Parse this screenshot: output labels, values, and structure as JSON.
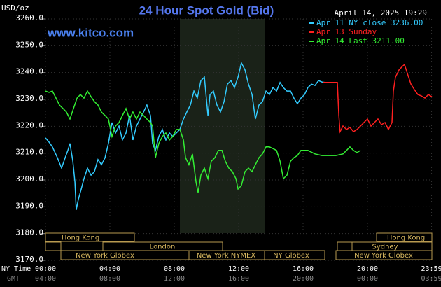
{
  "chart_data": {
    "type": "line",
    "title": "24 Hour Spot Gold (Bid)",
    "ylabel": "USD/oz",
    "timestamp": "April 14, 2025 19:29",
    "source": "www.kitco.com",
    "xlabel": "NY Time",
    "x2label": "GMT",
    "xlim": [
      0,
      24
    ],
    "ylim": [
      3170,
      3260
    ],
    "xticks": [
      {
        "value": 0,
        "label": "00:00"
      },
      {
        "value": 4,
        "label": "04:00"
      },
      {
        "value": 8,
        "label": "08:00"
      },
      {
        "value": 12,
        "label": "12:00"
      },
      {
        "value": 16,
        "label": "16:00"
      },
      {
        "value": 20,
        "label": "20:00"
      },
      {
        "value": 23.98,
        "label": "23:59"
      }
    ],
    "gmt_ticks": [
      "04:00",
      "08:00",
      "12:00",
      "16:00",
      "20:00",
      "00:00",
      "03:59"
    ],
    "yticks": [
      {
        "value": 3260,
        "label": "3260.0"
      },
      {
        "value": 3250,
        "label": "3250.0"
      },
      {
        "value": 3240,
        "label": "3240.0"
      },
      {
        "value": 3230,
        "label": "3230.0"
      },
      {
        "value": 3220,
        "label": "3220.0"
      },
      {
        "value": 3210,
        "label": "3210.0"
      },
      {
        "value": 3200,
        "label": "3200.0"
      },
      {
        "value": 3190,
        "label": "3190.0"
      },
      {
        "value": 3180,
        "label": "3180.0"
      },
      {
        "value": 3170,
        "label": "3170.0"
      }
    ],
    "grid": true,
    "sessions": [
      "Hong Kong",
      "London",
      "New York Globex",
      "New York NYMEX",
      "NY Globex",
      "Hong Kong",
      "Sydney",
      "New York Globex"
    ],
    "series": [
      {
        "name": "Apr 11 NY close 3236.00",
        "color": "#33ccff",
        "x": [
          0,
          0.22,
          0.43,
          0.74,
          1.0,
          1.22,
          1.39,
          1.52,
          1.7,
          1.83,
          1.91,
          2.04,
          2.22,
          2.39,
          2.61,
          2.83,
          3.04,
          3.26,
          3.48,
          3.7,
          3.91,
          4.13,
          4.35,
          4.57,
          4.78,
          5.0,
          5.22,
          5.43,
          5.65,
          5.87,
          6.09,
          6.3,
          6.52,
          6.65,
          6.83,
          7.04,
          7.26,
          7.48,
          7.7,
          7.91,
          8.13,
          8.35,
          8.57,
          8.78,
          9.0,
          9.22,
          9.43,
          9.65,
          9.87,
          10.09,
          10.22,
          10.43,
          10.65,
          10.87,
          11.09,
          11.3,
          11.52,
          11.74,
          11.96,
          12.17,
          12.39,
          12.61,
          12.83,
          13.04,
          13.26,
          13.48,
          13.7,
          13.91,
          14.13,
          14.35,
          14.57,
          14.78,
          15.0,
          15.22,
          15.43,
          15.65,
          15.87,
          16.09,
          16.3,
          16.52,
          16.74,
          16.96,
          17.17,
          17.35
        ],
        "values": [
          3215.7,
          3214.1,
          3212.3,
          3208.3,
          3204.4,
          3208.3,
          3211.0,
          3213.6,
          3207.0,
          3199.2,
          3188.8,
          3192.7,
          3196.6,
          3200.5,
          3204.4,
          3201.8,
          3203.1,
          3207.6,
          3205.7,
          3208.3,
          3213.6,
          3221.4,
          3217.5,
          3220.1,
          3214.9,
          3217.5,
          3224.0,
          3214.9,
          3220.1,
          3222.7,
          3225.3,
          3227.9,
          3224.0,
          3213.6,
          3211.0,
          3216.2,
          3218.8,
          3214.9,
          3217.5,
          3216.2,
          3217.5,
          3218.8,
          3222.7,
          3225.3,
          3227.9,
          3233.1,
          3230.5,
          3237.0,
          3238.3,
          3224.0,
          3231.8,
          3233.1,
          3227.9,
          3225.3,
          3229.2,
          3235.7,
          3237.0,
          3234.4,
          3238.3,
          3243.6,
          3241.0,
          3235.7,
          3231.8,
          3222.7,
          3227.9,
          3229.2,
          3233.1,
          3231.8,
          3234.4,
          3233.1,
          3236.3,
          3234.4,
          3233.1,
          3233.1,
          3230.5,
          3228.4,
          3230.5,
          3231.8,
          3234.4,
          3235.7,
          3235.2,
          3237.0,
          3236.5,
          3236.3
        ]
      },
      {
        "name": "Apr 13 Sunday",
        "color": "#ff2020",
        "x": [
          17.26,
          18.13,
          18.22,
          18.3,
          18.48,
          18.7,
          18.91,
          19.13,
          19.35,
          19.57,
          19.78,
          20.0,
          20.22,
          20.43,
          20.65,
          20.87,
          21.09,
          21.3,
          21.52,
          21.61,
          21.74,
          21.96,
          22.17,
          22.3,
          22.48,
          22.7,
          22.91,
          23.13,
          23.35,
          23.57,
          23.78,
          24.0
        ],
        "values": [
          3236.3,
          3236.3,
          3224.0,
          3218.0,
          3220.1,
          3218.8,
          3219.6,
          3218.0,
          3218.8,
          3220.1,
          3221.4,
          3222.7,
          3220.1,
          3221.4,
          3222.7,
          3220.6,
          3221.4,
          3218.8,
          3221.4,
          3233.1,
          3238.3,
          3241.0,
          3242.3,
          3243.0,
          3239.7,
          3235.7,
          3233.7,
          3231.8,
          3231.3,
          3230.5,
          3231.8,
          3231.0
        ]
      },
      {
        "name": "Apr 14 Last 3211.00",
        "color": "#33ee33",
        "x": [
          0,
          0.22,
          0.43,
          0.65,
          0.87,
          1.09,
          1.3,
          1.52,
          1.74,
          1.96,
          2.17,
          2.39,
          2.61,
          2.83,
          3.04,
          3.26,
          3.48,
          3.7,
          3.91,
          4.13,
          4.35,
          4.57,
          4.78,
          5.0,
          5.22,
          5.43,
          5.65,
          5.87,
          6.09,
          6.3,
          6.52,
          6.65,
          6.83,
          7.04,
          7.26,
          7.48,
          7.7,
          7.91,
          8.13,
          8.35,
          8.57,
          8.7,
          8.91,
          9.13,
          9.35,
          9.48,
          9.65,
          9.87,
          10.09,
          10.3,
          10.52,
          10.74,
          10.96,
          11.17,
          11.39,
          11.61,
          11.83,
          11.96,
          12.17,
          12.39,
          12.61,
          12.83,
          13.04,
          13.26,
          13.48,
          13.7,
          13.91,
          14.13,
          14.35,
          14.57,
          14.78,
          15.0,
          15.22,
          15.43,
          15.65,
          15.87,
          16.3,
          16.74,
          17.17,
          18.04,
          18.48,
          18.7,
          18.91,
          19.13,
          19.35,
          19.57
        ],
        "values": [
          3233.1,
          3232.6,
          3233.1,
          3230.5,
          3227.9,
          3226.6,
          3225.3,
          3222.7,
          3226.6,
          3230.5,
          3231.8,
          3230.5,
          3233.1,
          3231.0,
          3229.2,
          3227.9,
          3225.3,
          3224.0,
          3222.7,
          3216.2,
          3220.1,
          3221.4,
          3224.0,
          3226.6,
          3222.7,
          3225.3,
          3222.7,
          3225.3,
          3224.0,
          3222.7,
          3221.4,
          3220.1,
          3208.3,
          3213.6,
          3216.2,
          3217.5,
          3214.9,
          3216.2,
          3218.8,
          3218.8,
          3214.9,
          3208.3,
          3205.7,
          3209.7,
          3199.2,
          3195.3,
          3201.8,
          3204.4,
          3200.5,
          3207.0,
          3208.3,
          3211.0,
          3211.0,
          3207.0,
          3204.4,
          3203.1,
          3200.5,
          3196.6,
          3197.9,
          3203.1,
          3204.4,
          3203.1,
          3205.7,
          3208.3,
          3209.7,
          3212.3,
          3212.3,
          3211.7,
          3211.0,
          3207.0,
          3200.5,
          3201.8,
          3207.0,
          3208.3,
          3209.1,
          3211.0,
          3211.0,
          3209.7,
          3209.1,
          3209.1,
          3209.7,
          3211.0,
          3212.3,
          3211.0,
          3210.2,
          3211.0
        ]
      }
    ]
  }
}
